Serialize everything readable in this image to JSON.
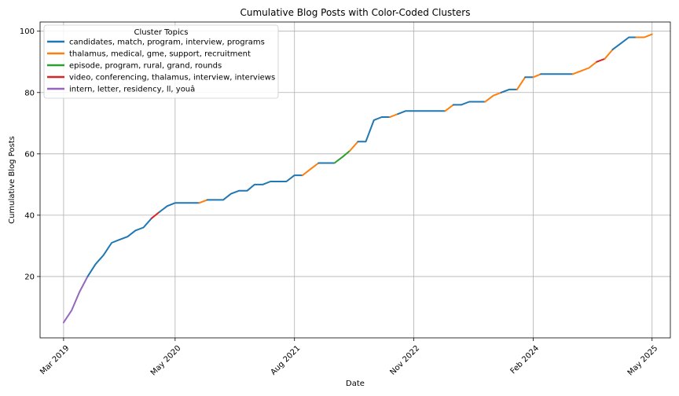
{
  "chart_data": {
    "type": "line",
    "title": "Cumulative Blog Posts with Color-Coded Clusters",
    "xlabel": "Date",
    "ylabel": "Cumulative Blog Posts",
    "x_ticks": [
      "Mar 2019",
      "May 2020",
      "Aug 2021",
      "Nov 2022",
      "Feb 2024",
      "May 2025"
    ],
    "y_ticks": [
      20,
      40,
      60,
      80,
      100
    ],
    "xlim": [
      "2018-12-01",
      "2025-07-10"
    ],
    "ylim": [
      0,
      103
    ],
    "grid": true,
    "legend": {
      "title": "Cluster Topics",
      "position": "top-left",
      "entries": [
        {
          "label": "candidates, match, program, interview, programs",
          "color": "#1f77b4"
        },
        {
          "label": "thalamus, medical, gme, support, recruitment",
          "color": "#ff7f0e"
        },
        {
          "label": "episode, program, rural, grand, rounds",
          "color": "#2ca02c"
        },
        {
          "label": "video, conferencing, thalamus, interview, interviews",
          "color": "#d62728"
        },
        {
          "label": "intern, letter, residency, ll, youâ",
          "color": "#9467bd"
        }
      ]
    },
    "series": [
      {
        "cluster": 4,
        "color": "#9467bd",
        "x": [
          "2019-03-01",
          "2019-04-01",
          "2019-05-01",
          "2019-06-01"
        ],
        "y": [
          5,
          9,
          15,
          20
        ]
      },
      {
        "cluster": 0,
        "color": "#1f77b4",
        "x": [
          "2019-06-01",
          "2019-07-01",
          "2019-08-01",
          "2019-09-01",
          "2019-10-01",
          "2019-11-01",
          "2019-12-01",
          "2020-01-01",
          "2020-02-01"
        ],
        "y": [
          20,
          24,
          27,
          31,
          32,
          33,
          35,
          36,
          39
        ]
      },
      {
        "cluster": 3,
        "color": "#d62728",
        "x": [
          "2020-02-01",
          "2020-03-01"
        ],
        "y": [
          39,
          41
        ]
      },
      {
        "cluster": 0,
        "color": "#1f77b4",
        "x": [
          "2020-03-01",
          "2020-04-01",
          "2020-05-01",
          "2020-06-01",
          "2020-07-01",
          "2020-08-01"
        ],
        "y": [
          41,
          43,
          44,
          44,
          44,
          44
        ]
      },
      {
        "cluster": 1,
        "color": "#ff7f0e",
        "x": [
          "2020-08-01",
          "2020-09-01"
        ],
        "y": [
          44,
          45
        ]
      },
      {
        "cluster": 0,
        "color": "#1f77b4",
        "x": [
          "2020-09-01",
          "2020-10-01",
          "2020-11-01",
          "2020-12-01",
          "2021-01-01",
          "2021-02-01",
          "2021-03-01",
          "2021-04-01",
          "2021-05-01",
          "2021-06-01",
          "2021-07-01",
          "2021-08-01",
          "2021-09-01"
        ],
        "y": [
          45,
          45,
          45,
          47,
          48,
          48,
          50,
          50,
          51,
          51,
          51,
          53,
          53
        ]
      },
      {
        "cluster": 1,
        "color": "#ff7f0e",
        "x": [
          "2021-09-01",
          "2021-10-01",
          "2021-11-01"
        ],
        "y": [
          53,
          55,
          57
        ]
      },
      {
        "cluster": 0,
        "color": "#1f77b4",
        "x": [
          "2021-11-01",
          "2021-12-01",
          "2022-01-01"
        ],
        "y": [
          57,
          57,
          57
        ]
      },
      {
        "cluster": 2,
        "color": "#2ca02c",
        "x": [
          "2022-01-01",
          "2022-02-01",
          "2022-03-01"
        ],
        "y": [
          57,
          59,
          61
        ]
      },
      {
        "cluster": 1,
        "color": "#ff7f0e",
        "x": [
          "2022-03-01",
          "2022-04-01"
        ],
        "y": [
          61,
          64
        ]
      },
      {
        "cluster": 0,
        "color": "#1f77b4",
        "x": [
          "2022-04-01",
          "2022-05-01",
          "2022-06-01",
          "2022-07-01",
          "2022-08-01"
        ],
        "y": [
          64,
          64,
          71,
          72,
          72
        ]
      },
      {
        "cluster": 1,
        "color": "#ff7f0e",
        "x": [
          "2022-08-01",
          "2022-09-01"
        ],
        "y": [
          72,
          73
        ]
      },
      {
        "cluster": 0,
        "color": "#1f77b4",
        "x": [
          "2022-09-01",
          "2022-10-01",
          "2022-11-01",
          "2022-12-01",
          "2023-01-01",
          "2023-02-01",
          "2023-03-01"
        ],
        "y": [
          73,
          74,
          74,
          74,
          74,
          74,
          74
        ]
      },
      {
        "cluster": 1,
        "color": "#ff7f0e",
        "x": [
          "2023-03-01",
          "2023-04-01"
        ],
        "y": [
          74,
          76
        ]
      },
      {
        "cluster": 0,
        "color": "#1f77b4",
        "x": [
          "2023-04-01",
          "2023-05-01",
          "2023-06-01",
          "2023-07-01",
          "2023-08-01"
        ],
        "y": [
          76,
          76,
          77,
          77,
          77
        ]
      },
      {
        "cluster": 1,
        "color": "#ff7f0e",
        "x": [
          "2023-08-01",
          "2023-09-01",
          "2023-10-01"
        ],
        "y": [
          77,
          79,
          80
        ]
      },
      {
        "cluster": 0,
        "color": "#1f77b4",
        "x": [
          "2023-10-01",
          "2023-11-01",
          "2023-12-01"
        ],
        "y": [
          80,
          81,
          81
        ]
      },
      {
        "cluster": 1,
        "color": "#ff7f0e",
        "x": [
          "2023-12-01",
          "2024-01-01"
        ],
        "y": [
          81,
          85
        ]
      },
      {
        "cluster": 0,
        "color": "#1f77b4",
        "x": [
          "2024-01-01",
          "2024-02-01"
        ],
        "y": [
          85,
          85
        ]
      },
      {
        "cluster": 1,
        "color": "#ff7f0e",
        "x": [
          "2024-02-01",
          "2024-03-01"
        ],
        "y": [
          85,
          86
        ]
      },
      {
        "cluster": 0,
        "color": "#1f77b4",
        "x": [
          "2024-03-01",
          "2024-04-01",
          "2024-05-01",
          "2024-06-01",
          "2024-07-01"
        ],
        "y": [
          86,
          86,
          86,
          86,
          86
        ]
      },
      {
        "cluster": 1,
        "color": "#ff7f0e",
        "x": [
          "2024-07-01",
          "2024-08-01",
          "2024-09-01",
          "2024-10-01"
        ],
        "y": [
          86,
          87,
          88,
          90
        ]
      },
      {
        "cluster": 3,
        "color": "#d62728",
        "x": [
          "2024-10-01",
          "2024-11-01"
        ],
        "y": [
          90,
          91
        ]
      },
      {
        "cluster": 1,
        "color": "#ff7f0e",
        "x": [
          "2024-11-01",
          "2024-12-01"
        ],
        "y": [
          91,
          94
        ]
      },
      {
        "cluster": 0,
        "color": "#1f77b4",
        "x": [
          "2024-12-01",
          "2025-01-01",
          "2025-02-01",
          "2025-03-01"
        ],
        "y": [
          94,
          96,
          98,
          98
        ]
      },
      {
        "cluster": 1,
        "color": "#ff7f0e",
        "x": [
          "2025-03-01",
          "2025-04-01",
          "2025-05-01"
        ],
        "y": [
          98,
          98,
          99
        ]
      }
    ]
  }
}
